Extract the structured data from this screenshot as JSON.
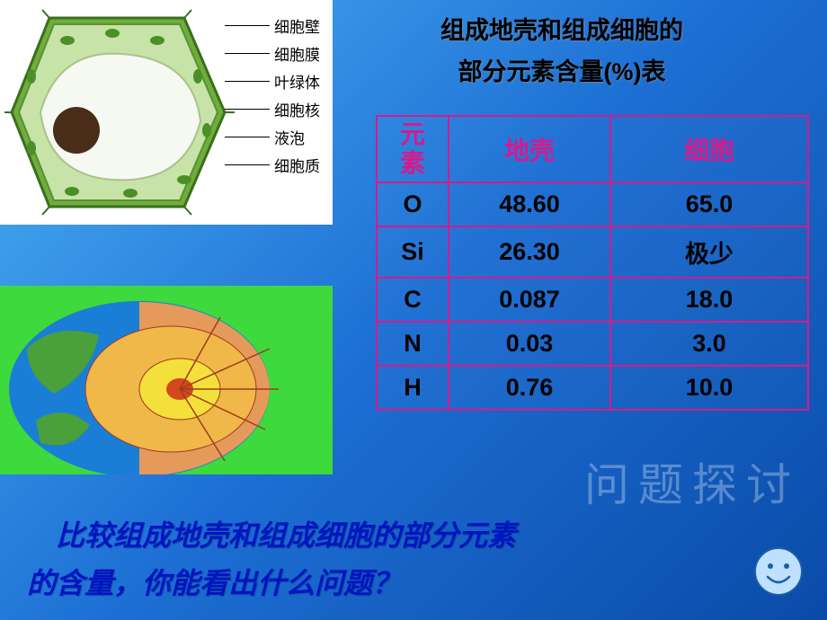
{
  "heading": {
    "line1": "组成地壳和组成细胞的",
    "line2": "部分元素含量(%)表"
  },
  "cell_diagram": {
    "labels": [
      "细胞壁",
      "细胞膜",
      "叶绿体",
      "细胞核",
      "液泡",
      "细胞质"
    ],
    "colors": {
      "wall": "#6fae3a",
      "membrane": "#8fc763",
      "chloroplast": "#4b8f27",
      "nucleus": "#4a2d18",
      "vacuole": "#f6f9f2",
      "cytoplasm": "#c7e3a7"
    }
  },
  "earth_diagram": {
    "bg": "#3dd93d",
    "ocean": "#1a7ed6",
    "land": "#4aa03a",
    "mantle_outer": "#e59a5b",
    "mantle_inner": "#f0b848",
    "core": "#f4e03a",
    "line": "#a03b1e"
  },
  "table": {
    "headers": {
      "element": "元素",
      "crust": "地壳",
      "cell": "细胞"
    },
    "rows": [
      {
        "elem": "O",
        "crust": "48.60",
        "cell": "65.0"
      },
      {
        "elem": "Si",
        "crust": "26.30",
        "cell": "极少"
      },
      {
        "elem": "C",
        "crust": "0.087",
        "cell": "18.0"
      },
      {
        "elem": "N",
        "crust": "0.03",
        "cell": "3.0"
      },
      {
        "elem": "H",
        "crust": "0.76",
        "cell": "10.0"
      }
    ],
    "border_color": "#d61a8c",
    "header_color": "#d61a8c",
    "cell_color": "#000000",
    "fontsize": 27
  },
  "watermark": "问题探讨",
  "question": {
    "line1": "比较组成地壳和组成细胞的部分元素",
    "line2": "的含量，你能看出什么问题？",
    "color": "#0015c2"
  },
  "smiley": {
    "face": "#bfe1ff",
    "stroke": "#1b5fa8"
  }
}
